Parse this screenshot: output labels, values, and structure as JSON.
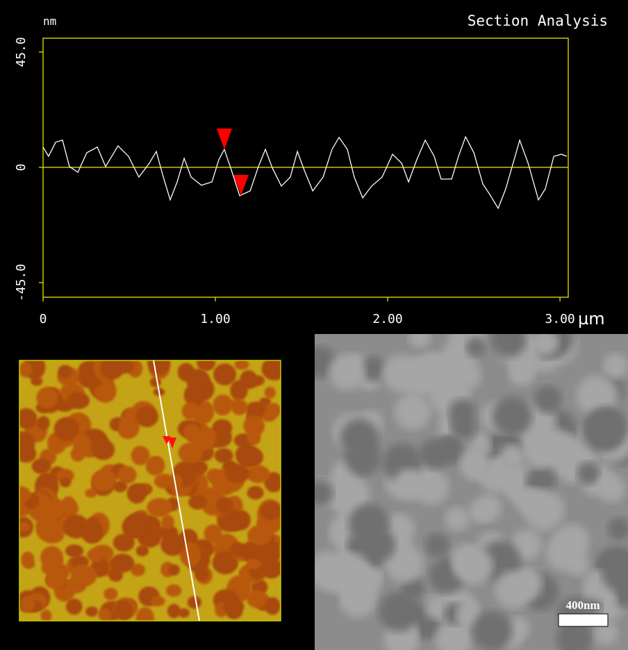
{
  "chart_data": {
    "type": "line",
    "title": "Section Analysis",
    "ylabel": "nm",
    "xlabel": "µm",
    "x": [
      0,
      0.032,
      0.073,
      0.113,
      0.153,
      0.202,
      0.254,
      0.315,
      0.363,
      0.435,
      0.496,
      0.556,
      0.617,
      0.657,
      0.698,
      0.738,
      0.778,
      0.819,
      0.859,
      0.919,
      0.98,
      1.02,
      1.052,
      1.093,
      1.141,
      1.202,
      1.25,
      1.29,
      1.331,
      1.383,
      1.435,
      1.476,
      1.516,
      1.565,
      1.625,
      1.677,
      1.718,
      1.766,
      1.806,
      1.855,
      1.907,
      1.968,
      2.028,
      2.081,
      2.121,
      2.169,
      2.218,
      2.27,
      2.31,
      2.371,
      2.411,
      2.452,
      2.5,
      2.552,
      2.593,
      2.641,
      2.685,
      2.734,
      2.766,
      2.815,
      2.875,
      2.915,
      2.964,
      3.008,
      3.04
    ],
    "values": [
      7.9,
      4.3,
      9.8,
      10.6,
      0.3,
      -1.9,
      5.7,
      7.9,
      0.3,
      8.4,
      4.3,
      -3.8,
      1.6,
      6.2,
      -3.8,
      -12.7,
      -5.7,
      3.5,
      -3.8,
      -7.0,
      -5.7,
      3.0,
      7.0,
      -1.1,
      -11.1,
      -9.2,
      0.3,
      7.0,
      -0.3,
      -7.3,
      -3.8,
      6.2,
      -1.1,
      -9.2,
      -3.8,
      7.0,
      11.7,
      7.0,
      -3.8,
      -11.9,
      -7.3,
      -3.8,
      5.1,
      1.6,
      -5.7,
      3.0,
      10.6,
      4.3,
      -4.6,
      -4.6,
      4.3,
      11.9,
      5.7,
      -6.5,
      -10.6,
      -16.0,
      -8.4,
      3.0,
      10.6,
      1.6,
      -12.7,
      -8.4,
      4.3,
      5.1,
      4.3
    ],
    "color": "#ffffff",
    "axis_color": "#c8c800",
    "cursors": {
      "x": [
        1.052,
        1.149
      ],
      "y": [
        7.0,
        -11.1
      ],
      "color": "#ff0000"
    },
    "xlim": [
      0,
      3.048
    ],
    "ylim": [
      -50.7,
      50.4
    ],
    "xticks": [
      0,
      {
        "value": 1,
        "label": "1.00"
      },
      {
        "value": 2,
        "label": "2.00"
      },
      {
        "value": 3,
        "label": "3.00"
      }
    ],
    "yticks": [
      {
        "value": -45,
        "label": "-45.0"
      },
      0,
      {
        "value": 45,
        "label": "45.0"
      }
    ]
  },
  "sem_image": {
    "scale_bar": "400nm"
  }
}
